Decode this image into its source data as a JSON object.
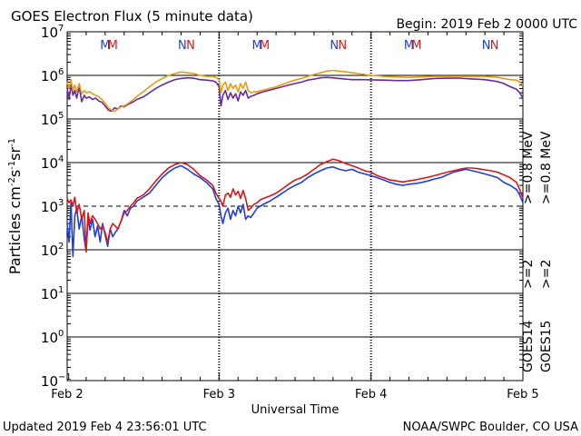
{
  "chart_data": {
    "type": "line",
    "title": "GOES Electron Flux (5 minute data)",
    "begin_label": "Begin: 2019 Feb 2 0000 UTC",
    "xlabel": "Universal Time",
    "ylabel_main": "Particles cm",
    "ylabel_exp1": "-2",
    "ylabel_mid1": "s",
    "ylabel_exp2": "-1",
    "ylabel_mid2": "sr",
    "ylabel_exp3": "-1",
    "y_scale": "log",
    "ylim": [
      -1,
      7
    ],
    "xlim": [
      0,
      72
    ],
    "x_unit": "hours since 2019 Feb 2 0000 UTC",
    "x_ticks": [
      {
        "x": 0,
        "label": "Feb 2"
      },
      {
        "x": 24,
        "label": "Feb 3"
      },
      {
        "x": 48,
        "label": "Feb 4"
      },
      {
        "x": 72,
        "label": "Feb 5"
      }
    ],
    "y_ticks": [
      {
        "exp": -1,
        "label_base": "10",
        "label_exp": "−1"
      },
      {
        "exp": 0,
        "label_base": "10",
        "label_exp": "0"
      },
      {
        "exp": 1,
        "label_base": "10",
        "label_exp": "1"
      },
      {
        "exp": 2,
        "label_base": "10",
        "label_exp": "2"
      },
      {
        "exp": 3,
        "label_base": "10",
        "label_exp": "3"
      },
      {
        "exp": 4,
        "label_base": "10",
        "label_exp": "4"
      },
      {
        "exp": 5,
        "label_base": "10",
        "label_exp": "5"
      },
      {
        "exp": 6,
        "label_base": "10",
        "label_exp": "6"
      },
      {
        "exp": 7,
        "label_base": "10",
        "label_exp": "7"
      }
    ],
    "solid_hlines_exp": [
      0,
      1,
      2,
      4,
      5,
      6
    ],
    "dashed_hline_exp": 3,
    "markers": [
      {
        "x": 6.0,
        "label": "M",
        "color": "#1f3fd6"
      },
      {
        "x": 7.2,
        "label": "M",
        "color": "#d81818"
      },
      {
        "x": 18.2,
        "label": "N",
        "color": "#1f3fd6"
      },
      {
        "x": 19.5,
        "label": "N",
        "color": "#d81818"
      },
      {
        "x": 30.0,
        "label": "M",
        "color": "#1f3fd6"
      },
      {
        "x": 31.2,
        "label": "M",
        "color": "#d81818"
      },
      {
        "x": 42.2,
        "label": "N",
        "color": "#1f3fd6"
      },
      {
        "x": 43.5,
        "label": "N",
        "color": "#d81818"
      },
      {
        "x": 54.0,
        "label": "M",
        "color": "#1f3fd6"
      },
      {
        "x": 55.2,
        "label": "M",
        "color": "#d81818"
      },
      {
        "x": 66.2,
        "label": "N",
        "color": "#1f3fd6"
      },
      {
        "x": 67.5,
        "label": "N",
        "color": "#d81818"
      }
    ],
    "series": [
      {
        "name": ">=2 MeV GOES14",
        "color": "#1f3fd6",
        "x": [
          0,
          0.3,
          0.6,
          0.9,
          1.2,
          1.5,
          1.9,
          2.3,
          2.7,
          3.0,
          3.3,
          3.6,
          4.0,
          4.4,
          4.8,
          5.2,
          5.6,
          6.0,
          6.4,
          6.8,
          7.2,
          7.6,
          8.0,
          8.5,
          9.0,
          9.5,
          10.0,
          10.5,
          11.0,
          12.0,
          13.0,
          14.0,
          15.0,
          16.0,
          17.0,
          18.0,
          19.0,
          20.0,
          21.0,
          22.0,
          23.0,
          23.5,
          24.0,
          24.3,
          24.6,
          25.0,
          25.4,
          25.8,
          26.2,
          26.6,
          27.0,
          27.4,
          27.8,
          28.2,
          28.6,
          29.0,
          29.5,
          30.0,
          30.5,
          31.0,
          32.0,
          33.0,
          34.0,
          35.0,
          36.0,
          37.0,
          38.0,
          39.0,
          40.0,
          41.0,
          42.0,
          43.0,
          44.0,
          45.0,
          46.0,
          47.0,
          48.0,
          49.0,
          50.0,
          51.0,
          52.0,
          53.0,
          54.0,
          55.0,
          56.0,
          57.0,
          58.0,
          59.0,
          60.0,
          61.0,
          62.0,
          63.0,
          64.0,
          65.0,
          66.0,
          67.0,
          68.0,
          69.0,
          70.0,
          71.0,
          71.5,
          72.0
        ],
        "y": [
          400,
          150,
          1200,
          70,
          600,
          900,
          300,
          600,
          180,
          90,
          550,
          280,
          500,
          200,
          350,
          150,
          400,
          220,
          120,
          300,
          200,
          250,
          300,
          450,
          800,
          600,
          900,
          1000,
          1300,
          1600,
          2000,
          3000,
          4500,
          6000,
          7500,
          8500,
          7000,
          5500,
          4500,
          3500,
          2500,
          1500,
          1100,
          600,
          400,
          700,
          900,
          500,
          800,
          600,
          1000,
          700,
          1100,
          500,
          600,
          550,
          700,
          900,
          1000,
          1100,
          1300,
          1600,
          2000,
          2500,
          3000,
          3500,
          4500,
          5500,
          6500,
          7500,
          8000,
          7000,
          6500,
          7000,
          6000,
          5500,
          5000,
          4500,
          4000,
          3500,
          3200,
          3000,
          3200,
          3300,
          3500,
          3800,
          4200,
          4500,
          5200,
          6000,
          6500,
          7000,
          6500,
          6000,
          5500,
          5000,
          4500,
          3500,
          3000,
          2400,
          1800,
          1200
        ]
      },
      {
        "name": ">=2 MeV GOES15",
        "color": "#d81818",
        "x": [
          0,
          0.3,
          0.6,
          0.9,
          1.2,
          1.5,
          1.9,
          2.3,
          2.7,
          3.0,
          3.3,
          3.6,
          4.0,
          4.4,
          4.8,
          5.2,
          5.6,
          6.0,
          6.4,
          6.8,
          7.2,
          7.6,
          8.0,
          8.5,
          9.0,
          9.5,
          10.0,
          10.5,
          11.0,
          12.0,
          13.0,
          14.0,
          15.0,
          16.0,
          17.0,
          18.0,
          19.0,
          20.0,
          21.0,
          22.0,
          23.0,
          23.5,
          24.0,
          24.3,
          24.6,
          25.0,
          25.4,
          25.8,
          26.2,
          26.6,
          27.0,
          27.4,
          27.8,
          28.2,
          28.6,
          29.0,
          29.5,
          30.0,
          30.5,
          31.0,
          32.0,
          33.0,
          34.0,
          35.0,
          36.0,
          37.0,
          38.0,
          39.0,
          40.0,
          41.0,
          42.0,
          43.0,
          44.0,
          45.0,
          46.0,
          47.0,
          48.0,
          49.0,
          50.0,
          51.0,
          52.0,
          53.0,
          54.0,
          55.0,
          56.0,
          57.0,
          58.0,
          59.0,
          60.0,
          61.0,
          62.0,
          63.0,
          64.0,
          65.0,
          66.0,
          67.0,
          68.0,
          69.0,
          70.0,
          71.0,
          71.5,
          72.0
        ],
        "y": [
          1500,
          1200,
          1400,
          1000,
          1600,
          700,
          1100,
          500,
          800,
          90,
          700,
          400,
          600,
          500,
          400,
          300,
          350,
          250,
          150,
          300,
          400,
          350,
          300,
          450,
          700,
          800,
          1000,
          1200,
          1500,
          1800,
          2500,
          3800,
          5500,
          7500,
          9000,
          10000,
          9000,
          7000,
          5000,
          4000,
          3000,
          2000,
          1500,
          1300,
          1000,
          1800,
          2000,
          1600,
          2500,
          1800,
          2200,
          1500,
          2300,
          1500,
          800,
          900,
          1100,
          1200,
          1400,
          1500,
          1700,
          2000,
          2500,
          3200,
          4000,
          4500,
          5500,
          7000,
          9000,
          10500,
          12000,
          11000,
          9500,
          8500,
          7500,
          6500,
          6000,
          5000,
          4500,
          4000,
          3800,
          3600,
          3800,
          4000,
          4300,
          4600,
          5000,
          5500,
          6000,
          6500,
          7000,
          7500,
          7500,
          7200,
          6800,
          6500,
          6000,
          5200,
          4500,
          3500,
          2400,
          1500
        ]
      },
      {
        "name": ">=0.8 MeV GOES14",
        "color": "#6a2a9a",
        "x": [
          0,
          0.3,
          0.6,
          0.9,
          1.2,
          1.5,
          1.9,
          2.3,
          2.7,
          3.0,
          3.5,
          4.0,
          4.5,
          5.0,
          5.5,
          6.0,
          6.5,
          7.0,
          7.5,
          8.0,
          8.5,
          9.0,
          9.5,
          10.0,
          10.5,
          11.0,
          12.0,
          13.0,
          14.0,
          15.0,
          16.0,
          17.0,
          18.0,
          19.0,
          20.0,
          21.0,
          22.0,
          23.0,
          23.5,
          24.0,
          24.3,
          24.6,
          25.0,
          25.4,
          25.8,
          26.2,
          26.6,
          27.0,
          27.4,
          27.8,
          28.2,
          28.6,
          29.0,
          29.5,
          30.0,
          31.0,
          32.0,
          33.0,
          34.0,
          35.0,
          36.0,
          37.0,
          38.0,
          39.0,
          40.0,
          41.0,
          42.0,
          43.0,
          44.0,
          45.0,
          46.0,
          47.0,
          48.0,
          50.0,
          52.0,
          54.0,
          56.0,
          58.0,
          60.0,
          62.0,
          64.0,
          66.0,
          68.0,
          69.0,
          70.0,
          71.0,
          71.5,
          72.0
        ],
        "y": [
          500000,
          280000,
          600000,
          350000,
          450000,
          300000,
          550000,
          250000,
          350000,
          300000,
          320000,
          280000,
          300000,
          260000,
          240000,
          200000,
          160000,
          150000,
          180000,
          170000,
          200000,
          190000,
          210000,
          230000,
          250000,
          280000,
          320000,
          400000,
          500000,
          600000,
          700000,
          800000,
          850000,
          880000,
          860000,
          800000,
          780000,
          750000,
          700000,
          560000,
          200000,
          350000,
          450000,
          280000,
          400000,
          300000,
          380000,
          260000,
          420000,
          350000,
          450000,
          300000,
          330000,
          350000,
          380000,
          420000,
          460000,
          500000,
          550000,
          600000,
          650000,
          700000,
          780000,
          820000,
          880000,
          900000,
          880000,
          850000,
          820000,
          800000,
          800000,
          800000,
          790000,
          780000,
          760000,
          760000,
          800000,
          850000,
          860000,
          860000,
          830000,
          800000,
          720000,
          650000,
          550000,
          480000,
          400000,
          300000
        ]
      },
      {
        "name": ">=0.8 MeV GOES15",
        "color": "#e89a10",
        "x": [
          0,
          0.3,
          0.6,
          0.9,
          1.2,
          1.5,
          1.9,
          2.3,
          2.7,
          3.0,
          3.5,
          4.0,
          4.5,
          5.0,
          5.5,
          6.0,
          6.5,
          7.0,
          7.5,
          8.0,
          8.5,
          9.0,
          9.5,
          10.0,
          10.5,
          11.0,
          12.0,
          13.0,
          14.0,
          15.0,
          16.0,
          17.0,
          18.0,
          19.0,
          20.0,
          21.0,
          22.0,
          23.0,
          23.5,
          24.0,
          24.3,
          24.6,
          25.0,
          25.4,
          25.8,
          26.2,
          26.6,
          27.0,
          27.4,
          27.8,
          28.2,
          28.6,
          29.0,
          29.5,
          30.0,
          31.0,
          32.0,
          33.0,
          34.0,
          35.0,
          36.0,
          37.0,
          38.0,
          39.0,
          40.0,
          41.0,
          42.0,
          43.0,
          44.0,
          45.0,
          46.0,
          47.0,
          48.0,
          50.0,
          52.0,
          54.0,
          56.0,
          58.0,
          60.0,
          62.0,
          64.0,
          66.0,
          68.0,
          69.0,
          70.0,
          71.0,
          71.5,
          72.0
        ],
        "y": [
          700000,
          500000,
          800000,
          450000,
          600000,
          420000,
          650000,
          380000,
          450000,
          400000,
          420000,
          380000,
          350000,
          320000,
          280000,
          230000,
          180000,
          160000,
          150000,
          170000,
          190000,
          200000,
          220000,
          250000,
          280000,
          330000,
          420000,
          550000,
          700000,
          850000,
          1000000,
          1100000,
          1200000,
          1150000,
          1100000,
          1000000,
          950000,
          950000,
          900000,
          800000,
          400000,
          600000,
          700000,
          450000,
          650000,
          500000,
          600000,
          420000,
          650000,
          500000,
          700000,
          450000,
          400000,
          420000,
          420000,
          460000,
          500000,
          550000,
          620000,
          700000,
          780000,
          850000,
          950000,
          1050000,
          1150000,
          1250000,
          1300000,
          1250000,
          1200000,
          1150000,
          1100000,
          1050000,
          1000000,
          950000,
          920000,
          900000,
          920000,
          950000,
          950000,
          950000,
          950000,
          950000,
          900000,
          850000,
          800000,
          780000,
          700000,
          600000
        ]
      }
    ]
  },
  "legend_right": {
    "upper": [
      {
        "text": ">=0.8  MeV",
        "color": "#e89a10"
      },
      {
        "text": ">=0.8  MeV",
        "color": "#6a2a9a"
      }
    ],
    "middle": [
      {
        "text": ">=2",
        "color": "#d81818"
      },
      {
        "text": ">=2",
        "color": "#1f3fd6"
      }
    ],
    "lower": [
      {
        "text": "GOES15",
        "color": "#000000"
      },
      {
        "text": "GOES14",
        "color": "#000000"
      }
    ]
  },
  "footer": {
    "updated": "Updated 2019 Feb  4 23:56:01 UTC",
    "credit": "NOAA/SWPC Boulder, CO USA"
  }
}
